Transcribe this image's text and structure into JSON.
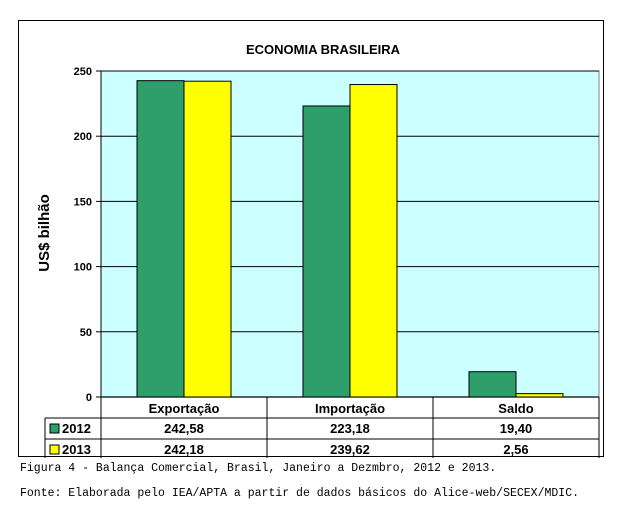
{
  "chart_data": {
    "type": "bar",
    "title": "ECONOMIA BRASILEIRA",
    "ylabel": "US$ bilhão",
    "xlabel": "",
    "categories": [
      "Exportação",
      "Importação",
      "Saldo"
    ],
    "series": [
      {
        "name": "2012",
        "values": [
          242.58,
          223.18,
          19.4
        ],
        "labels": [
          "242,58",
          "223,18",
          "19,40"
        ],
        "color": "#2e9e6b"
      },
      {
        "name": "2013",
        "values": [
          242.18,
          239.62,
          2.56
        ],
        "labels": [
          "242,18",
          "239,62",
          "2,56"
        ],
        "color": "#ffff00"
      }
    ],
    "ylim": [
      0,
      250
    ],
    "yticks": [
      0,
      50,
      100,
      150,
      200,
      250
    ],
    "grid": true,
    "plot_background": "#ccffff",
    "legend": "data-table"
  },
  "caption": {
    "figure": "Figura 4 - Balança Comercial, Brasil, Janeiro a Dezmbro, 2012 e 2013.",
    "source": "Fonte: Elaborada pelo IEA/APTA a partir de dados básicos do Alice-web/SECEX/MDIC."
  }
}
